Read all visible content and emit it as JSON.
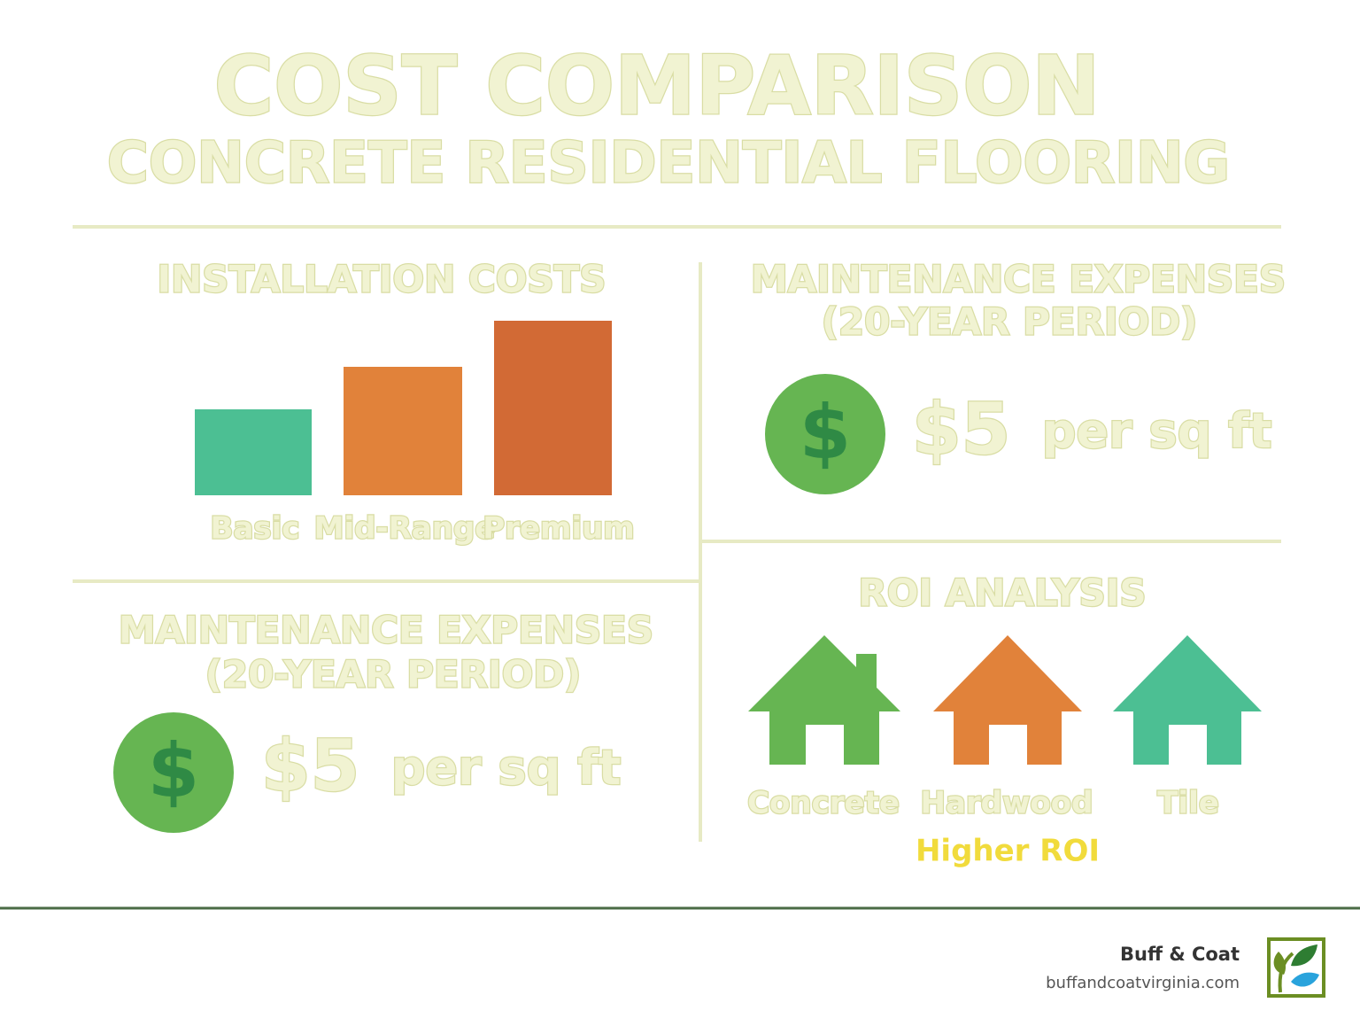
{
  "header": {
    "title": "COST COMPARISON",
    "subtitle": "CONCRETE RESIDENTIAL FLOORING"
  },
  "installation": {
    "heading": "INSTALLATION COSTS",
    "bars": [
      {
        "label": "Basic",
        "color": "#4cbf93"
      },
      {
        "label": "Mid-Range",
        "color": "#e1823a"
      },
      {
        "label": "Premium",
        "color": "#d26a35"
      }
    ]
  },
  "maintenance_top": {
    "heading_lines": [
      "MAINTENANCE EXPENSES",
      "(20-YEAR PERIOD)"
    ],
    "icon": "$",
    "amount": "$5",
    "unit": "per sq ft"
  },
  "maintenance_bottom": {
    "heading_lines": [
      "MAINTENANCE EXPENSES",
      "(20-YEAR PERIOD)"
    ],
    "icon": "$",
    "amount": "$5",
    "unit": "per sq ft"
  },
  "roi": {
    "heading": "ROI ANALYSIS",
    "houses": [
      {
        "label": "Concrete",
        "color": "#66b552"
      },
      {
        "label": "Hardwood",
        "color": "#e1823a"
      },
      {
        "label": "Tile",
        "color": "#4cbf93"
      }
    ],
    "note": "Higher ROI"
  },
  "footer": {
    "brand": "Buff & Coat",
    "url": "buffandcoatvirginia.com"
  }
}
